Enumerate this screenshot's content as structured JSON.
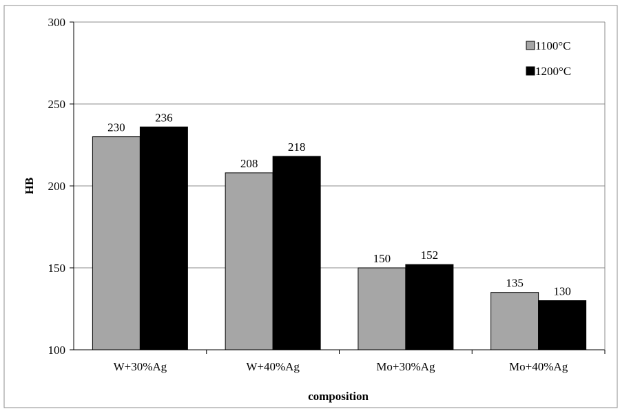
{
  "chart_data": {
    "type": "bar",
    "title": "",
    "xlabel": "composition",
    "ylabel": "HB",
    "ylim": [
      100,
      300
    ],
    "yticks": [
      100,
      150,
      200,
      250,
      300
    ],
    "grid": true,
    "legend_position": "top-right",
    "categories": [
      "W+30%Ag",
      "W+40%Ag",
      "Mo+30%Ag",
      "Mo+40%Ag"
    ],
    "series": [
      {
        "name": "1100°C",
        "color": "#a6a6a6",
        "values": [
          230,
          208,
          150,
          135
        ]
      },
      {
        "name": "1200°C",
        "color": "#000000",
        "values": [
          236,
          218,
          152,
          130
        ]
      }
    ]
  }
}
